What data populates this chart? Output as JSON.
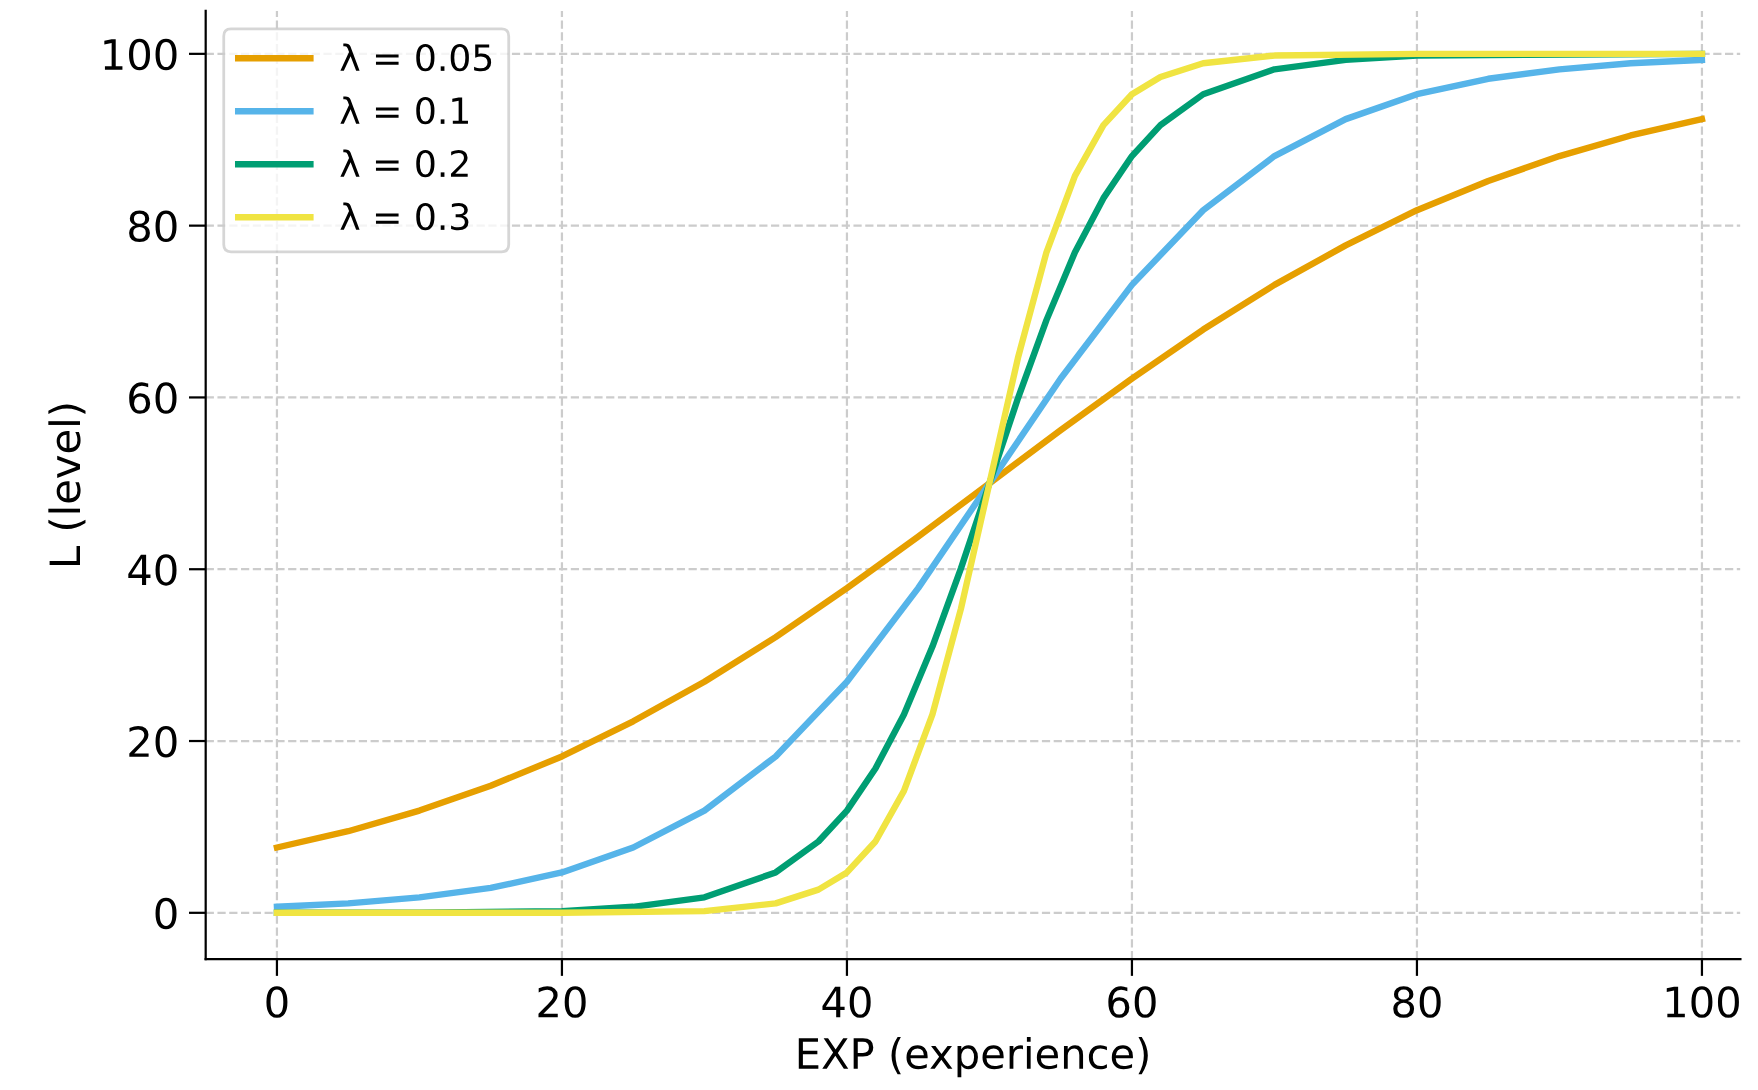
{
  "chart_data": {
    "type": "line",
    "xlabel": "EXP (experience)",
    "ylabel": "L (level)",
    "xlim": [
      -5,
      102.7
    ],
    "ylim": [
      -5.4,
      105
    ],
    "xticks": [
      0,
      20,
      40,
      60,
      80,
      100
    ],
    "yticks": [
      0,
      20,
      40,
      60,
      80,
      100
    ],
    "grid": true,
    "legend": "top left",
    "line_style": "solid",
    "series": [
      {
        "name": "λ = 0.05",
        "color": "#e69f00",
        "x": [
          0,
          5,
          10,
          15,
          20,
          25,
          30,
          35,
          40,
          45,
          50,
          55,
          60,
          65,
          70,
          75,
          80,
          85,
          90,
          95,
          100
        ],
        "values": [
          7.6,
          9.5,
          11.9,
          14.8,
          18.2,
          22.3,
          26.9,
          32.1,
          37.8,
          43.8,
          50,
          56.2,
          62.2,
          67.9,
          73.1,
          77.7,
          81.8,
          85.2,
          88.1,
          90.5,
          92.4
        ]
      },
      {
        "name": "λ = 0.1",
        "color": "#56b4e9",
        "x": [
          0,
          5,
          10,
          15,
          20,
          25,
          30,
          35,
          40,
          45,
          50,
          55,
          60,
          65,
          70,
          75,
          80,
          85,
          90,
          95,
          100
        ],
        "values": [
          0.7,
          1.1,
          1.8,
          2.9,
          4.7,
          7.6,
          11.9,
          18.2,
          26.9,
          37.8,
          50,
          62.2,
          73.1,
          81.8,
          88.1,
          92.4,
          95.3,
          97.1,
          98.2,
          98.9,
          99.3
        ]
      },
      {
        "name": "λ = 0.2",
        "color": "#009e73",
        "x": [
          0,
          10,
          20,
          25,
          30,
          35,
          38,
          40,
          42,
          44,
          46,
          48,
          50,
          52,
          54,
          56,
          58,
          60,
          62,
          65,
          70,
          75,
          80,
          100
        ],
        "values": [
          0.0,
          0.0,
          0.2,
          0.7,
          1.8,
          4.7,
          8.3,
          11.9,
          16.8,
          23.1,
          31.0,
          40.1,
          50,
          59.9,
          69.0,
          76.9,
          83.2,
          88.1,
          91.7,
          95.3,
          98.2,
          99.3,
          99.8,
          100.0
        ]
      },
      {
        "name": "λ = 0.3",
        "color": "#f0e442",
        "x": [
          0,
          20,
          30,
          35,
          38,
          40,
          42,
          44,
          46,
          48,
          50,
          52,
          54,
          56,
          58,
          60,
          62,
          65,
          70,
          80,
          100
        ],
        "values": [
          0.0,
          0.0,
          0.2,
          1.1,
          2.7,
          4.7,
          8.3,
          14.2,
          23.1,
          35.4,
          50,
          64.6,
          76.9,
          85.8,
          91.7,
          95.3,
          97.3,
          98.9,
          99.8,
          100.0,
          100.0
        ]
      }
    ]
  }
}
